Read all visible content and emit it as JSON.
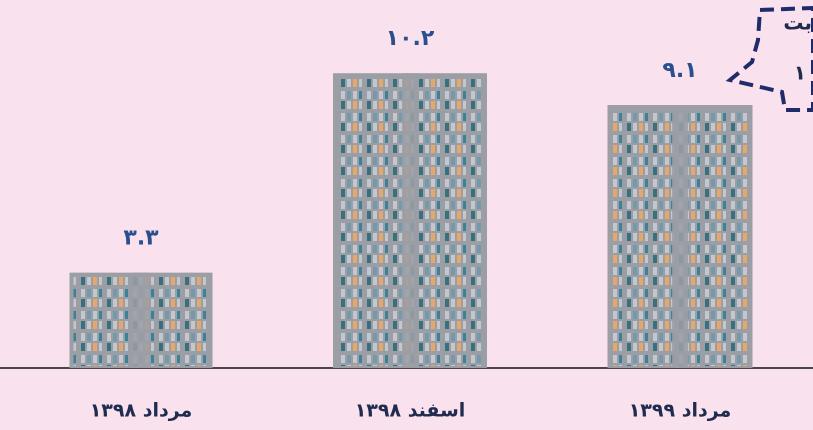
{
  "chart_data": {
    "type": "bar",
    "categories": [
      "مرداد ۱۳۹۸",
      "اسفند ۱۳۹۸",
      "مرداد ۱۳۹۹"
    ],
    "values": [
      3.3,
      10.2,
      9.1
    ],
    "value_labels": [
      "۳.۳",
      "۱۰.۲",
      "۹.۱"
    ],
    "color": "#9b9ea4",
    "annotation": [
      "بت",
      "۱"
    ]
  }
}
